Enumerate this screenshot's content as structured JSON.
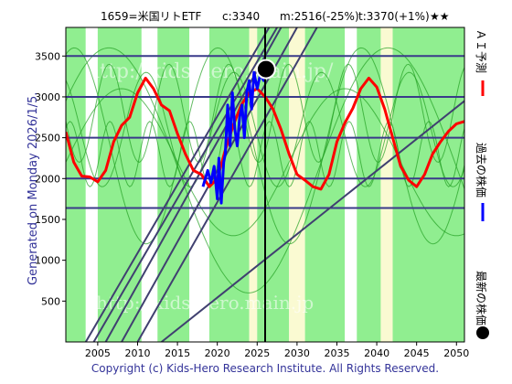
{
  "header": {
    "code_name": "1659=米国リトETF",
    "current": "c:3340",
    "mean": "m:2516(-25%)",
    "target": "t:3370(+1%)",
    "stars": "★★"
  },
  "side_label": "Generated on Monday 2026/1/5.",
  "copyright": "Copyright (c) Kids-Hero Research Institute. All Rights Reserved.",
  "watermarks": [
    "http://kids-hero.main.jp/",
    "http://kids-hero.main.jp"
  ],
  "legend": [
    {
      "label": "ＡＩ予測",
      "color": "#ff0000",
      "kind": "line"
    },
    {
      "label": "過去の株価",
      "color": "#0000ff",
      "kind": "line"
    },
    {
      "label": "最新の株価",
      "color": "#000000",
      "kind": "dot"
    }
  ],
  "colors": {
    "band_green": "#90ee90",
    "band_pale": "#fafad2",
    "band_white": "#ffffff",
    "hline": "#3a3a8a",
    "trend": "#404070",
    "cycle": "#22a022",
    "forecast": "#ff0000",
    "history": "#0000ff",
    "text": "#333399"
  },
  "chart_data": {
    "type": "line",
    "xlim": [
      2001,
      2051
    ],
    "ylim": [
      0,
      3850
    ],
    "xticks": [
      2005,
      2010,
      2015,
      2020,
      2025,
      2030,
      2035,
      2040,
      2045,
      2050
    ],
    "yticks": [
      500,
      1000,
      1500,
      2000,
      2500,
      3000,
      3500
    ],
    "hlines": [
      3500,
      3000,
      2500,
      2000,
      1640
    ],
    "current_marker": {
      "year": 2026.1,
      "value": 3340
    },
    "now_line_year": 2026.0,
    "bands": [
      {
        "x0": 2001,
        "x1": 2003.5,
        "color": "green"
      },
      {
        "x0": 2003.5,
        "x1": 2005.0,
        "color": "white"
      },
      {
        "x0": 2005.0,
        "x1": 2010.5,
        "color": "green"
      },
      {
        "x0": 2010.5,
        "x1": 2012.5,
        "color": "white"
      },
      {
        "x0": 2012.5,
        "x1": 2016.5,
        "color": "green"
      },
      {
        "x0": 2016.5,
        "x1": 2019.0,
        "color": "white"
      },
      {
        "x0": 2019.0,
        "x1": 2024.0,
        "color": "green"
      },
      {
        "x0": 2024.0,
        "x1": 2025.0,
        "color": "pale"
      },
      {
        "x0": 2025.0,
        "x1": 2029.0,
        "color": "green"
      },
      {
        "x0": 2029.0,
        "x1": 2031.0,
        "color": "pale"
      },
      {
        "x0": 2031.0,
        "x1": 2036.0,
        "color": "green"
      },
      {
        "x0": 2036.0,
        "x1": 2037.5,
        "color": "white"
      },
      {
        "x0": 2037.5,
        "x1": 2040.5,
        "color": "green"
      },
      {
        "x0": 2040.5,
        "x1": 2042.0,
        "color": "pale"
      },
      {
        "x0": 2042.0,
        "x1": 2051.0,
        "color": "green"
      }
    ],
    "trend_lines": [
      {
        "x": [
          2003.5,
          2026.5
        ],
        "y": [
          0,
          3850
        ]
      },
      {
        "x": [
          2006.0,
          2028.0
        ],
        "y": [
          0,
          3850
        ]
      },
      {
        "x": [
          2008.0,
          2030.0
        ],
        "y": [
          0,
          3850
        ]
      },
      {
        "x": [
          2010.0,
          2032.5
        ],
        "y": [
          0,
          3850
        ]
      },
      {
        "x": [
          2004.5,
          2027.5
        ],
        "y": [
          0,
          3850
        ]
      },
      {
        "x": [
          2013.0,
          2051.0
        ],
        "y": [
          0,
          2950
        ]
      }
    ],
    "series": [
      {
        "name": "ＡＩ予測",
        "x": [
          2001,
          2002,
          2003,
          2004,
          2005,
          2006,
          2007,
          2008,
          2009,
          2010,
          2011,
          2012,
          2013,
          2014,
          2015,
          2016,
          2017,
          2018,
          2019,
          2020,
          2021,
          2022,
          2023,
          2024,
          2025,
          2026,
          2027,
          2028,
          2029,
          2030,
          2031,
          2032,
          2033,
          2034,
          2035,
          2036,
          2037,
          2038,
          2039,
          2040,
          2041,
          2042,
          2043,
          2044,
          2045,
          2046,
          2047,
          2048,
          2049,
          2050,
          2051
        ],
        "y": [
          2570,
          2200,
          2030,
          2020,
          1960,
          2100,
          2450,
          2650,
          2750,
          3050,
          3230,
          3100,
          2900,
          2830,
          2550,
          2300,
          2100,
          2050,
          1900,
          2000,
          2350,
          2650,
          2900,
          3050,
          3100,
          3000,
          2850,
          2600,
          2300,
          2050,
          1980,
          1900,
          1870,
          2050,
          2450,
          2680,
          2860,
          3100,
          3230,
          3120,
          2850,
          2500,
          2150,
          1980,
          1900,
          2050,
          2300,
          2450,
          2580,
          2670,
          2700
        ]
      },
      {
        "name": "過去の株価",
        "x": [
          2018.2,
          2018.8,
          2019.2,
          2019.6,
          2020.0,
          2020.2,
          2020.5,
          2020.8,
          2021.0,
          2021.3,
          2021.6,
          2021.9,
          2022.2,
          2022.5,
          2022.8,
          2023.1,
          2023.4,
          2023.7,
          2024.0,
          2024.3,
          2024.6,
          2025.0,
          2025.4,
          2025.8,
          2026.0
        ],
        "y": [
          1900,
          2100,
          1950,
          2150,
          1750,
          2250,
          1700,
          2200,
          2300,
          2900,
          2400,
          3050,
          2600,
          2400,
          2750,
          2900,
          2500,
          3050,
          3200,
          2850,
          3300,
          3100,
          3280,
          3200,
          3340
        ]
      }
    ]
  }
}
